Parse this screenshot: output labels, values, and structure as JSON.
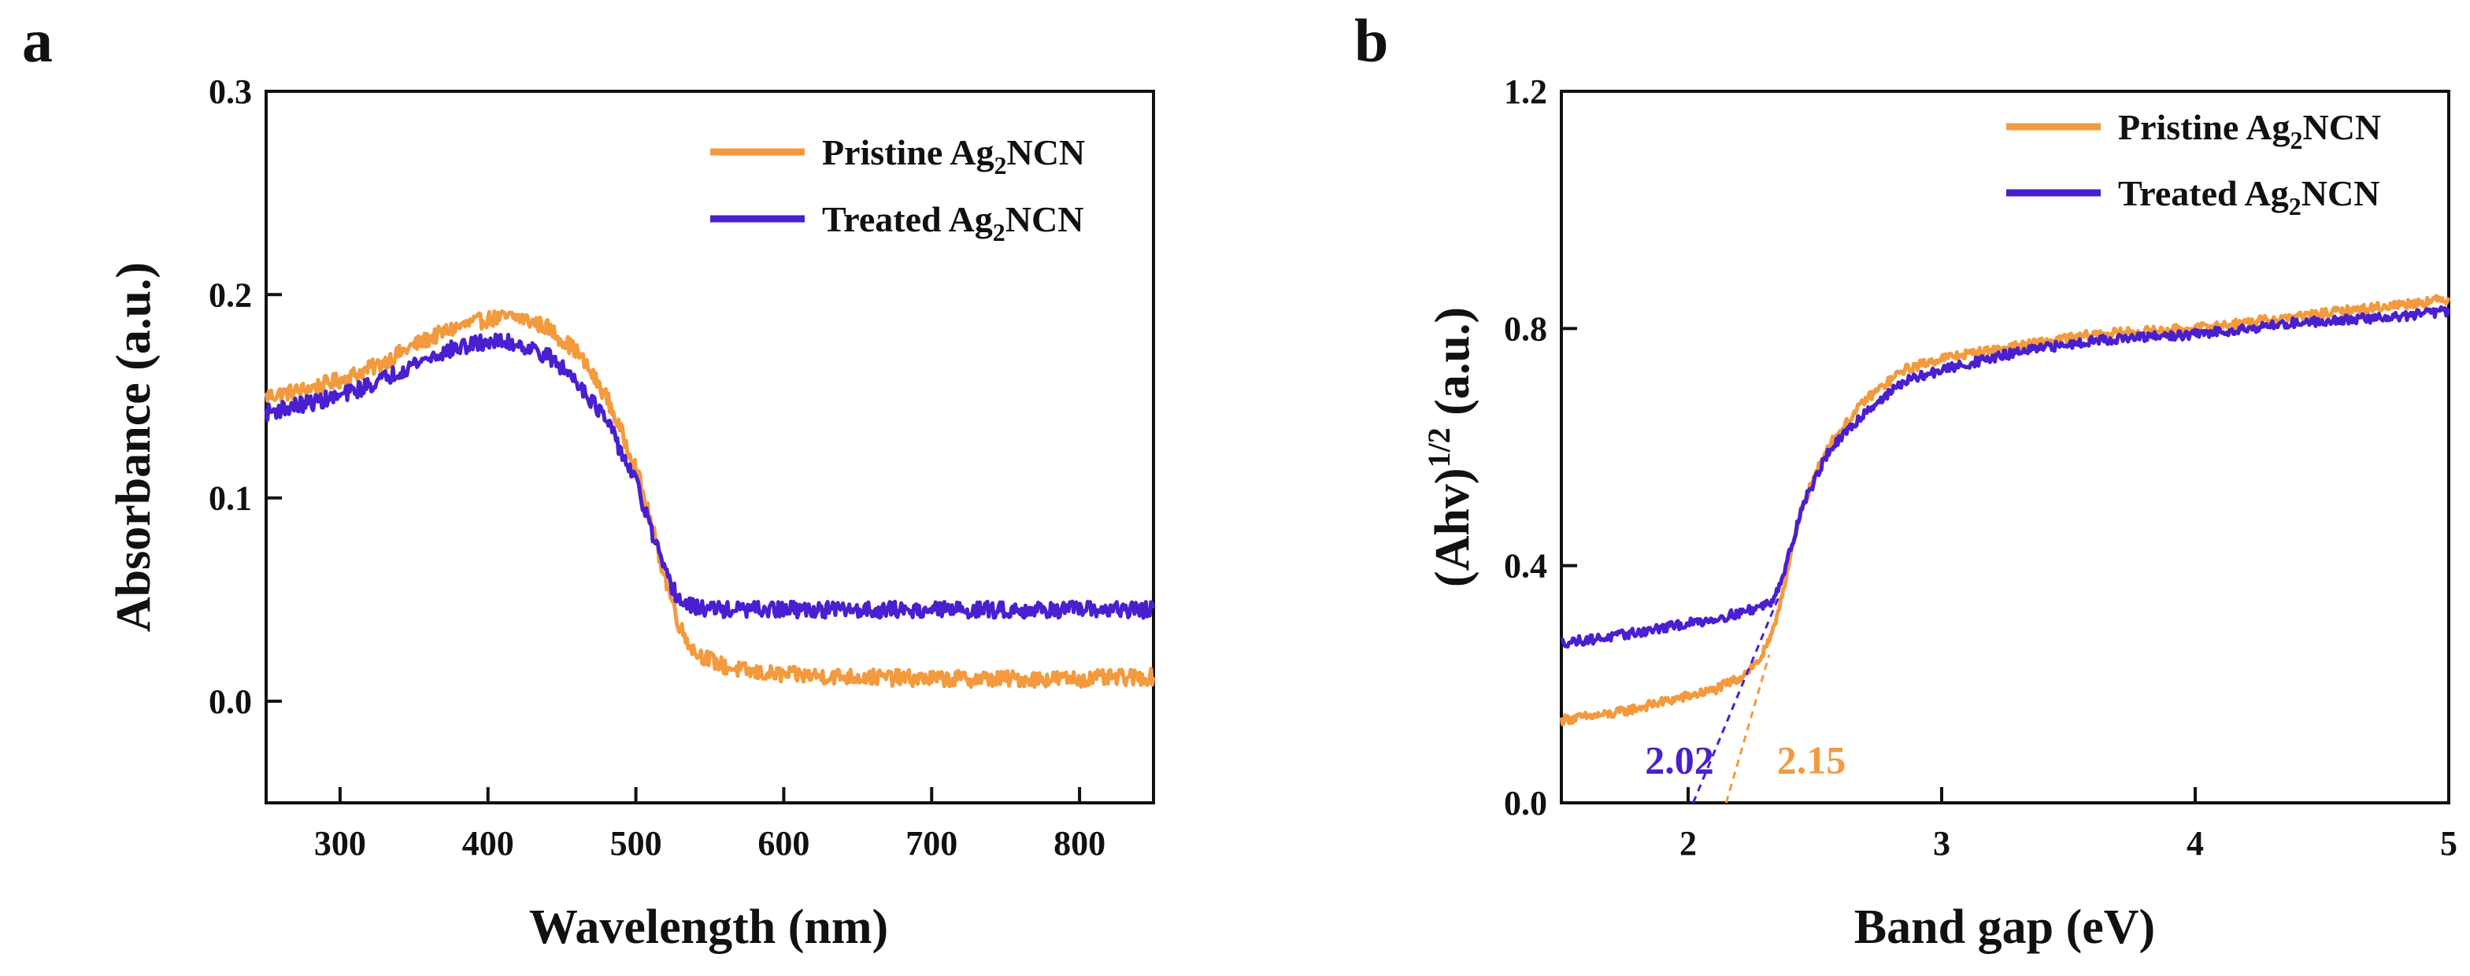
{
  "chart_data": [
    {
      "panel_label": "a",
      "type": "line",
      "title": "",
      "xlabel": "Wavelength (nm)",
      "ylabel": "Absorbance (a.u.)",
      "xlim": [
        250,
        850
      ],
      "ylim": [
        -0.05,
        0.3
      ],
      "xticks": [
        300,
        400,
        500,
        600,
        700,
        800
      ],
      "yticks": [
        0.0,
        0.1,
        0.2,
        0.3
      ],
      "xtick_labels": [
        "300",
        "400",
        "500",
        "600",
        "700",
        "800"
      ],
      "ytick_labels": [
        "0.0",
        "0.1",
        "0.2",
        "0.3"
      ],
      "legend_position": "top-right",
      "series": [
        {
          "name": "Pristine Ag2NCN",
          "legend_main": "Pristine Ag",
          "legend_sub": "2",
          "legend_tail": "NCN",
          "color": "#F39A3E",
          "x": [
            250,
            275,
            300,
            325,
            350,
            375,
            400,
            420,
            440,
            460,
            480,
            500,
            510,
            520,
            530,
            540,
            560,
            580,
            600,
            650,
            700,
            750,
            800,
            850
          ],
          "y": [
            0.15,
            0.153,
            0.158,
            0.165,
            0.175,
            0.183,
            0.188,
            0.189,
            0.184,
            0.172,
            0.15,
            0.115,
            0.088,
            0.06,
            0.036,
            0.024,
            0.017,
            0.014,
            0.013,
            0.012,
            0.011,
            0.011,
            0.011,
            0.012
          ],
          "noise": 0.004
        },
        {
          "name": "Treated Ag2NCN",
          "legend_main": "Treated Ag",
          "legend_sub": "2",
          "legend_tail": "NCN",
          "color": "#4A1FCF",
          "x": [
            250,
            275,
            300,
            325,
            350,
            375,
            400,
            420,
            440,
            460,
            480,
            500,
            510,
            520,
            530,
            540,
            560,
            580,
            600,
            650,
            700,
            750,
            800,
            850
          ],
          "y": [
            0.142,
            0.146,
            0.15,
            0.157,
            0.166,
            0.173,
            0.177,
            0.176,
            0.17,
            0.158,
            0.138,
            0.108,
            0.085,
            0.062,
            0.049,
            0.046,
            0.045,
            0.045,
            0.045,
            0.045,
            0.045,
            0.045,
            0.045,
            0.045
          ],
          "noise": 0.004
        }
      ]
    },
    {
      "panel_label": "b",
      "type": "line",
      "title": "",
      "xlabel": "Band gap (eV)",
      "ylabel_main": "(Ahv)",
      "ylabel_sup": "1/2",
      "ylabel_tail": " (a.u.)",
      "xlim": [
        1.5,
        5.0
      ],
      "ylim": [
        0.0,
        1.2
      ],
      "xticks": [
        2,
        3,
        4,
        5
      ],
      "yticks": [
        0.0,
        0.4,
        0.8,
        1.2
      ],
      "xtick_labels": [
        "2",
        "3",
        "4",
        "5"
      ],
      "ytick_labels": [
        "0.0",
        "0.4",
        "0.8",
        "1.2"
      ],
      "legend_position": "top-right",
      "series": [
        {
          "name": "Pristine Ag2NCN",
          "legend_main": "Pristine Ag",
          "legend_sub": "2",
          "legend_tail": "NCN",
          "color": "#F39A3E",
          "x": [
            1.5,
            1.7,
            1.9,
            2.1,
            2.2,
            2.28,
            2.33,
            2.38,
            2.45,
            2.55,
            2.7,
            2.85,
            3.0,
            3.3,
            3.6,
            4.0,
            4.4,
            4.8,
            5.0
          ],
          "y": [
            0.14,
            0.15,
            0.17,
            0.19,
            0.21,
            0.24,
            0.28,
            0.37,
            0.5,
            0.6,
            0.68,
            0.73,
            0.75,
            0.77,
            0.79,
            0.8,
            0.82,
            0.84,
            0.85
          ],
          "noise": 0.008
        },
        {
          "name": "Treated Ag2NCN",
          "legend_main": "Treated Ag",
          "legend_sub": "2",
          "legend_tail": "NCN",
          "color": "#4A1FCF",
          "x": [
            1.5,
            1.7,
            1.9,
            2.1,
            2.2,
            2.28,
            2.33,
            2.38,
            2.45,
            2.55,
            2.7,
            2.85,
            3.0,
            3.3,
            3.6,
            4.0,
            4.4,
            4.8,
            5.0
          ],
          "y": [
            0.27,
            0.28,
            0.295,
            0.31,
            0.32,
            0.33,
            0.34,
            0.39,
            0.5,
            0.59,
            0.66,
            0.71,
            0.73,
            0.76,
            0.78,
            0.79,
            0.81,
            0.82,
            0.83
          ],
          "noise": 0.008
        }
      ],
      "tangents": [
        {
          "color": "#4A1FCF",
          "x0": 2.02,
          "y0": 0.0,
          "x1": 2.36,
          "y1": 0.35
        },
        {
          "color": "#F39A3E",
          "x0": 2.15,
          "y0": 0.0,
          "x1": 2.32,
          "y1": 0.25
        }
      ],
      "annotations": [
        {
          "text": "2.02",
          "x": 1.83,
          "y": 0.05,
          "color": "#4A1FCF"
        },
        {
          "text": "2.15",
          "x": 2.35,
          "y": 0.05,
          "color": "#F39A3E"
        }
      ]
    }
  ]
}
